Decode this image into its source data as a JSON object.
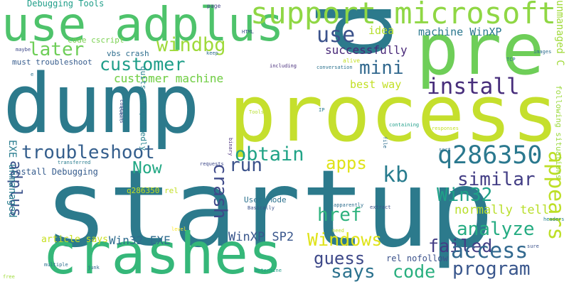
{
  "word_cloud": {
    "words": [
      {
        "text": "startup",
        "color": "#2c7a8c"
      },
      {
        "text": "dump",
        "color": "#2c7a8c"
      },
      {
        "text": "process",
        "color": "#c5df2d"
      },
      {
        "text": "crashes",
        "color": "#35b779"
      },
      {
        "text": "pre",
        "color": "#6ece58"
      },
      {
        "text": "p",
        "color": "#2c7a8c"
      },
      {
        "text": "use adplus",
        "color": "#4ec36b"
      },
      {
        "text": "support microsoft",
        "color": "#8fd744"
      },
      {
        "text": "later",
        "color": "#6ece58"
      },
      {
        "text": "windbg",
        "color": "#9fda3a"
      },
      {
        "text": "customer",
        "color": "#1f9e89"
      },
      {
        "text": "customer machine",
        "color": "#7ad151"
      },
      {
        "text": "mini",
        "color": "#31688e"
      },
      {
        "text": "install",
        "color": "#472d7b"
      },
      {
        "text": "use",
        "color": "#3b528b"
      },
      {
        "text": "idea",
        "color": "#b5de2b"
      },
      {
        "text": "successfully",
        "color": "#482878"
      },
      {
        "text": "machine WinXP",
        "color": "#2a788e"
      },
      {
        "text": "best way",
        "color": "#c2df23"
      },
      {
        "text": "troubleshoot",
        "color": "#355f8d"
      },
      {
        "text": "obtain",
        "color": "#20a386"
      },
      {
        "text": "kb",
        "color": "#287c8e"
      },
      {
        "text": "q286350",
        "color": "#2a788e"
      },
      {
        "text": "Now",
        "color": "#22a884"
      },
      {
        "text": "run",
        "color": "#3b528b"
      },
      {
        "text": "apps",
        "color": "#dfe318"
      },
      {
        "text": "similar",
        "color": "#433e85"
      },
      {
        "text": "crash",
        "color": "#3e4989"
      },
      {
        "text": "Win32",
        "color": "#1fa188"
      },
      {
        "text": "analyze",
        "color": "#25ac82"
      },
      {
        "text": "appears",
        "color": "#bddf26"
      },
      {
        "text": "href",
        "color": "#2db27d"
      },
      {
        "text": "Windows",
        "color": "#dfe318"
      },
      {
        "text": "failed",
        "color": "#433e85"
      },
      {
        "text": "access",
        "color": "#31688e"
      },
      {
        "text": "guess",
        "color": "#3e4989"
      },
      {
        "text": "says",
        "color": "#2c728e"
      },
      {
        "text": "code",
        "color": "#29af7f"
      },
      {
        "text": "program",
        "color": "#39568c"
      },
      {
        "text": "normally tell",
        "color": "#b8de29"
      },
      {
        "text": "adplus",
        "color": "#3b528b"
      },
      {
        "text": "EXE unmanaged",
        "color": "#287c8e"
      },
      {
        "text": "Win32 EXE",
        "color": "#2f6c8e"
      },
      {
        "text": "WinXP SP2",
        "color": "#39568c"
      },
      {
        "text": "User Mode",
        "color": "#2c728e"
      },
      {
        "text": "rel nofollow",
        "color": "#3b528b"
      },
      {
        "text": "unmanaged C",
        "color": "#a0da39"
      },
      {
        "text": "following situations",
        "color": "#9bd93c"
      },
      {
        "text": "Debugging Tools",
        "color": "#1f9e89"
      },
      {
        "text": "code cscript",
        "color": "#7ad151"
      },
      {
        "text": "vbs crash",
        "color": "#2e6e8e"
      },
      {
        "text": "must troubleshoot",
        "color": "#365c8d"
      },
      {
        "text": "customer machine",
        "color": "#7ad151"
      },
      {
        "text": "quits unexpectedly",
        "color": "#26828e"
      },
      {
        "text": "install Debugging",
        "color": "#365c8d"
      },
      {
        "text": "q286350 rel",
        "color": "#c2df23"
      },
      {
        "text": "article says",
        "color": "#c8e020"
      },
      {
        "text": "page",
        "color": "#414487"
      },
      {
        "text": "HTML",
        "color": "#3b528b"
      },
      {
        "text": "alive",
        "color": "#c2df23"
      },
      {
        "text": "keep",
        "color": "#2e6e8e"
      },
      {
        "text": "images",
        "color": "#2e6e8e"
      },
      {
        "text": "TCP",
        "color": "#2e6e8e"
      },
      {
        "text": "maybe",
        "color": "#3e4989"
      },
      {
        "text": "including",
        "color": "#472d7b"
      },
      {
        "text": "conversation",
        "color": "#2c728e"
      },
      {
        "text": "e",
        "color": "#2c728e"
      },
      {
        "text": "contains",
        "color": "#3e4989"
      },
      {
        "text": "event",
        "color": "#365c8d"
      },
      {
        "text": "Tools",
        "color": "#b5de2b"
      },
      {
        "text": "IP",
        "color": "#287c8e"
      },
      {
        "text": "containing",
        "color": "#1f9e89"
      },
      {
        "text": "responses",
        "color": "#c2df23"
      },
      {
        "text": "binary",
        "color": "#472d7b"
      },
      {
        "text": "file",
        "color": "#2e6e8e"
      },
      {
        "text": "sort",
        "color": "#2e6e8e"
      },
      {
        "text": "requests",
        "color": "#3e4989"
      },
      {
        "text": "transferred",
        "color": "#287c8e"
      },
      {
        "text": "Basically",
        "color": "#3b528b"
      },
      {
        "text": "apparently",
        "color": "#2e6e8e"
      },
      {
        "text": "extract",
        "color": "#3b528b"
      },
      {
        "text": "headers",
        "color": "#26828e"
      },
      {
        "text": "sure",
        "color": "#3b528b"
      },
      {
        "text": "level",
        "color": "#fde725"
      },
      {
        "text": "need",
        "color": "#bddf26"
      },
      {
        "text": "multiple",
        "color": "#2e6e8e"
      },
      {
        "text": "junk",
        "color": "#31688e"
      },
      {
        "text": "determine",
        "color": "#1f9e89"
      },
      {
        "text": "free",
        "color": "#9fda3a"
      }
    ]
  }
}
